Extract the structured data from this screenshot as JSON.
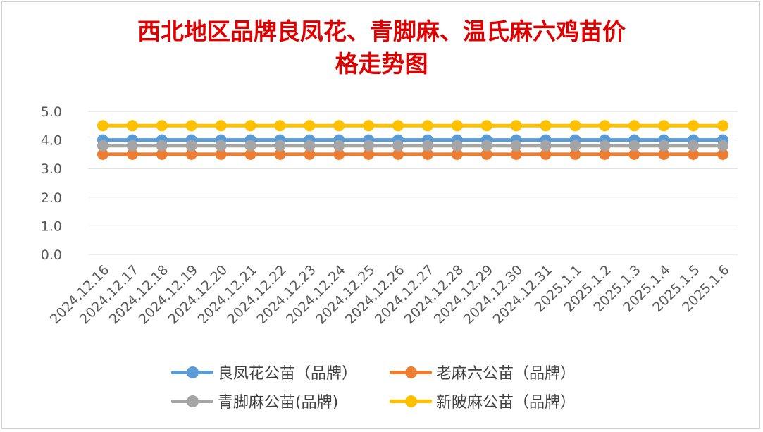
{
  "chart_data": {
    "type": "line",
    "title": "西北地区品牌良凤花、青脚麻、温氏麻六鸡苗价格走势图",
    "title_lines": [
      "西北地区品牌良凤花、青脚麻、温氏麻六鸡苗价",
      "格走势图"
    ],
    "xlabel": "",
    "ylabel": "",
    "ylim": [
      0,
      5
    ],
    "yticks": [
      "0.0",
      "1.0",
      "2.0",
      "3.0",
      "4.0",
      "5.0"
    ],
    "grid": true,
    "legend_position": "bottom",
    "categories": [
      "2024.12.16",
      "2024.12.17",
      "2024.12.18",
      "2024.12.19",
      "2024.12.20",
      "2024.12.21",
      "2024.12.22",
      "2024.12.23",
      "2024.12.24",
      "2024.12.25",
      "2024.12.26",
      "2024.12.27",
      "2024.12.28",
      "2024.12.29",
      "2024.12.30",
      "2024.12.31",
      "2025.1.1",
      "2025.1.2",
      "2025.1.3",
      "2025.1.4",
      "2025.1.5",
      "2025.1.6"
    ],
    "series": [
      {
        "name": "良凤花公苗（品牌）",
        "color": "#5b9bd5",
        "values": [
          4.0,
          4.0,
          4.0,
          4.0,
          4.0,
          4.0,
          4.0,
          4.0,
          4.0,
          4.0,
          4.0,
          4.0,
          4.0,
          4.0,
          4.0,
          4.0,
          4.0,
          4.0,
          4.0,
          4.0,
          4.0,
          4.0
        ]
      },
      {
        "name": "老麻六公苗（品牌）",
        "color": "#ed7d31",
        "values": [
          3.5,
          3.5,
          3.5,
          3.5,
          3.5,
          3.5,
          3.5,
          3.5,
          3.5,
          3.5,
          3.5,
          3.5,
          3.5,
          3.5,
          3.5,
          3.5,
          3.5,
          3.5,
          3.5,
          3.5,
          3.5,
          3.5
        ]
      },
      {
        "name": "青脚麻公苗(品牌)",
        "color": "#a5a5a5",
        "values": [
          3.8,
          3.8,
          3.8,
          3.8,
          3.8,
          3.8,
          3.8,
          3.8,
          3.8,
          3.8,
          3.8,
          3.8,
          3.8,
          3.8,
          3.8,
          3.8,
          3.8,
          3.8,
          3.8,
          3.8,
          3.8,
          3.8
        ]
      },
      {
        "name": "新陂麻公苗（品牌）",
        "color": "#ffc000",
        "values": [
          4.5,
          4.5,
          4.5,
          4.5,
          4.5,
          4.5,
          4.5,
          4.5,
          4.5,
          4.5,
          4.5,
          4.5,
          4.5,
          4.5,
          4.5,
          4.5,
          4.5,
          4.5,
          4.5,
          4.5,
          4.5,
          4.5
        ]
      }
    ]
  },
  "colors": {
    "title": "#e00000",
    "grid": "#d9d9d9",
    "tick_text": "#595959"
  }
}
